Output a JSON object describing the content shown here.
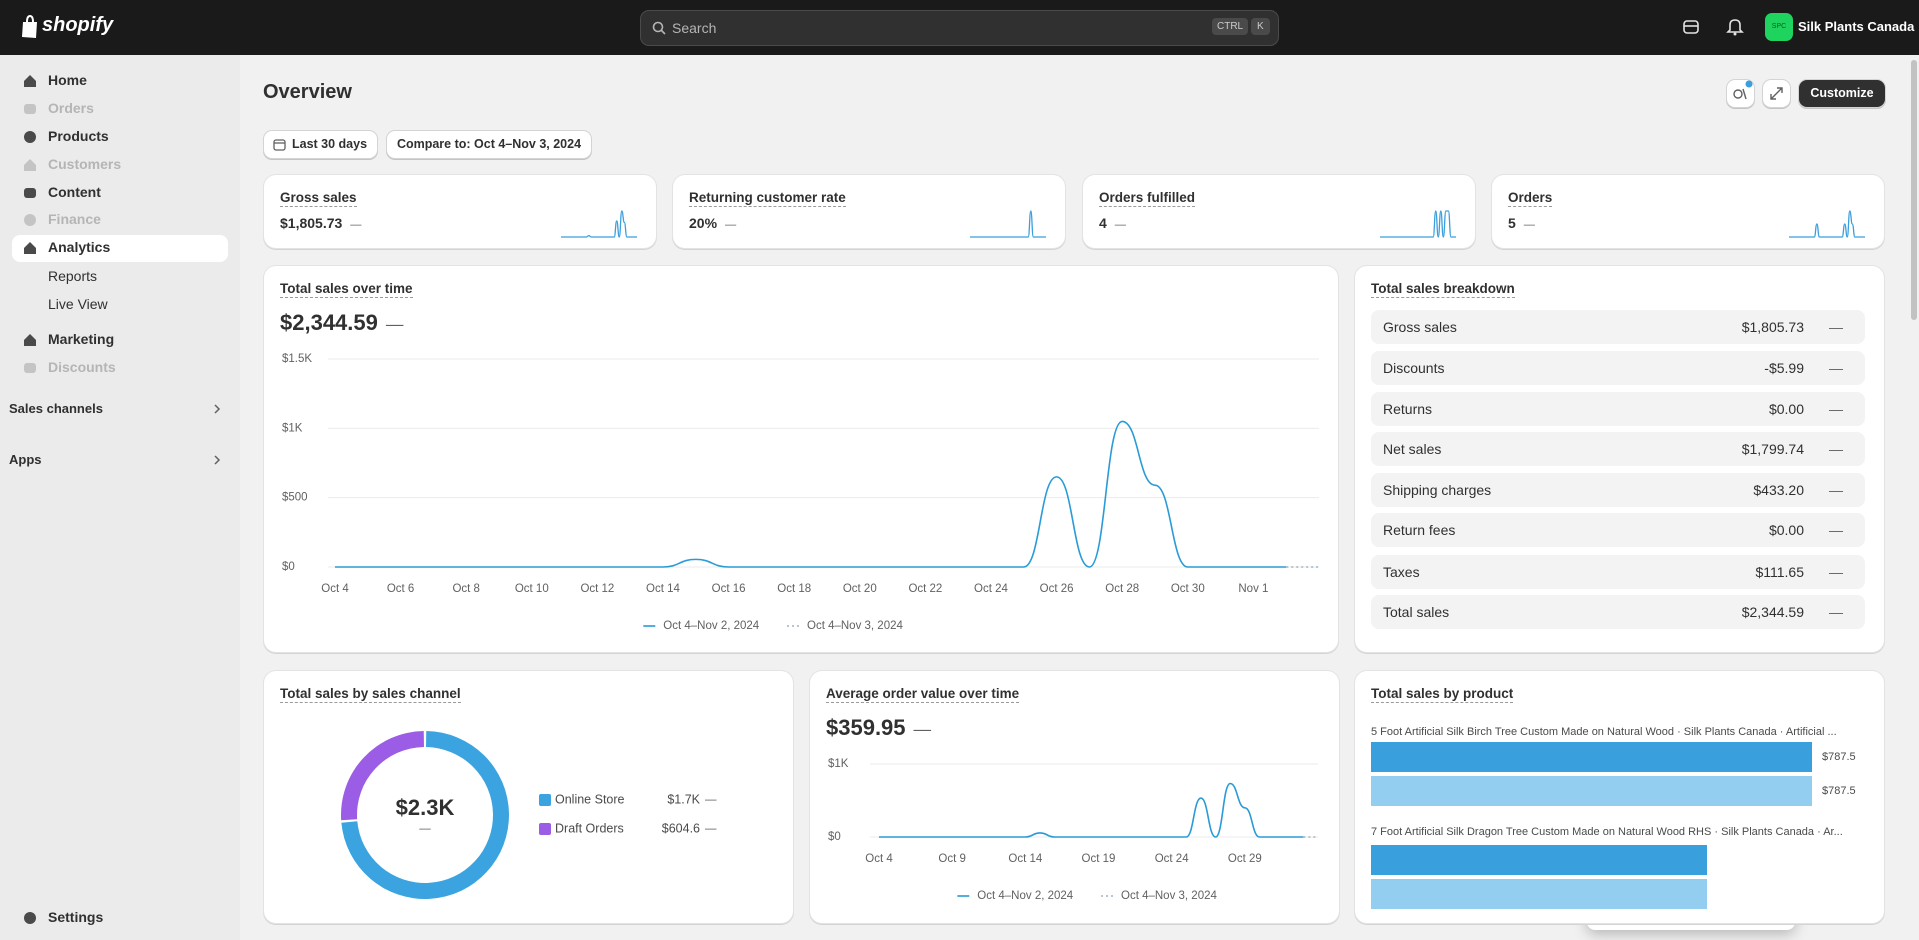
{
  "topbar": {
    "logo": "shopify",
    "search_placeholder": "Search",
    "shortcut_keys": [
      "CTRL",
      "K"
    ],
    "store_initials": "SPC",
    "store_name": "Silk Plants Canada"
  },
  "sidebar": {
    "nav": [
      {
        "label": "Home",
        "state": "normal"
      },
      {
        "label": "Orders",
        "state": "disabled"
      },
      {
        "label": "Products",
        "state": "normal"
      },
      {
        "label": "Customers",
        "state": "disabled"
      },
      {
        "label": "Content",
        "state": "normal"
      },
      {
        "label": "Finance",
        "state": "disabled"
      },
      {
        "label": "Analytics",
        "state": "active"
      },
      {
        "label": "Reports",
        "state": "sub"
      },
      {
        "label": "Live View",
        "state": "sub"
      },
      {
        "label": "Marketing",
        "state": "normal"
      },
      {
        "label": "Discounts",
        "state": "disabled"
      }
    ],
    "sections": [
      "Sales channels",
      "Apps"
    ],
    "settings": "Settings"
  },
  "header": {
    "title": "Overview",
    "date_range": "Last 30 days",
    "compare": "Compare to: Oct 4–Nov 3, 2024",
    "customize": "Customize"
  },
  "kpis": [
    {
      "label": "Gross sales",
      "value": "$1,805.73",
      "change": "—",
      "color": "#3a9fdc",
      "sparkline": [
        0,
        0,
        0,
        0,
        0,
        0,
        0,
        0,
        0,
        0,
        0,
        55,
        0,
        0,
        0,
        0,
        0,
        0,
        0,
        0,
        0,
        0,
        650,
        0,
        1050,
        590,
        0,
        0,
        0,
        0,
        0
      ]
    },
    {
      "label": "Returning customer rate",
      "value": "20%",
      "change": "—",
      "color": "#3a9fdc",
      "sparkline": [
        0,
        0,
        0,
        0,
        0,
        0,
        0,
        0,
        0,
        0,
        0,
        0,
        0,
        0,
        0,
        0,
        0,
        0,
        0,
        0,
        0,
        0,
        0,
        0,
        100,
        0,
        0,
        0,
        0,
        0,
        0
      ]
    },
    {
      "label": "Orders fulfilled",
      "value": "4",
      "change": "—",
      "color": "#3a9fdc",
      "sparkline": [
        0,
        0,
        0,
        0,
        0,
        0,
        0,
        0,
        0,
        0,
        0,
        0,
        0,
        0,
        0,
        0,
        0,
        0,
        0,
        0,
        0,
        0,
        1,
        0,
        1,
        0,
        1,
        1,
        0,
        0,
        0
      ]
    },
    {
      "label": "Orders",
      "value": "5",
      "change": "—",
      "color": "#3a9fdc",
      "sparkline": [
        0,
        0,
        0,
        0,
        0,
        0,
        0,
        0,
        0,
        0,
        0,
        1,
        0,
        0,
        0,
        0,
        0,
        0,
        0,
        0,
        0,
        0,
        1,
        0,
        2,
        1,
        0,
        0,
        0,
        0,
        0
      ]
    }
  ],
  "sales_over_time": {
    "type": "line",
    "title": "Total sales over time",
    "total": "$2,344.59",
    "change": "—",
    "categories": [
      "Oct 4",
      null,
      "Oct 6",
      null,
      "Oct 8",
      null,
      "Oct 10",
      null,
      "Oct 12",
      null,
      "Oct 14",
      null,
      "Oct 16",
      null,
      "Oct 18",
      null,
      "Oct 20",
      null,
      "Oct 22",
      null,
      "Oct 24",
      null,
      "Oct 26",
      null,
      "Oct 28",
      null,
      "Oct 30",
      null,
      "Nov 1",
      null,
      null
    ],
    "series": [
      {
        "name": "Oct 4–Nov 2, 2024",
        "color": "#2a9bd6",
        "dashed": false,
        "values": [
          0,
          0,
          0,
          0,
          0,
          0,
          0,
          0,
          0,
          0,
          0,
          55,
          0,
          0,
          0,
          0,
          0,
          0,
          0,
          0,
          0,
          0,
          650,
          0,
          1050,
          590,
          0,
          0,
          0,
          0,
          null
        ]
      },
      {
        "name": "Oct 4–Nov 3, 2024",
        "color": "#9fb4c2",
        "dashed": true,
        "values": [
          null,
          null,
          null,
          null,
          null,
          null,
          null,
          null,
          null,
          null,
          null,
          null,
          null,
          null,
          null,
          null,
          null,
          null,
          null,
          null,
          null,
          null,
          null,
          null,
          null,
          null,
          null,
          null,
          null,
          0,
          0
        ]
      }
    ],
    "ylim": [
      0,
      1500
    ],
    "yticks": [
      {
        "value": 0,
        "label": "$0"
      },
      {
        "value": 500,
        "label": "$500"
      },
      {
        "value": 1000,
        "label": "$1K"
      },
      {
        "value": 1500,
        "label": "$1.5K"
      }
    ],
    "grid": true
  },
  "breakdown": {
    "title": "Total sales breakdown",
    "rows": [
      {
        "label": "Gross sales",
        "value": "$1,805.73",
        "change": "—"
      },
      {
        "label": "Discounts",
        "value": "-$5.99",
        "change": "—"
      },
      {
        "label": "Returns",
        "value": "$0.00",
        "change": "—"
      },
      {
        "label": "Net sales",
        "value": "$1,799.74",
        "change": "—"
      },
      {
        "label": "Shipping charges",
        "value": "$433.20",
        "change": "—"
      },
      {
        "label": "Return fees",
        "value": "$0.00",
        "change": "—"
      },
      {
        "label": "Taxes",
        "value": "$111.65",
        "change": "—"
      },
      {
        "label": "Total sales",
        "value": "$2,344.59",
        "change": "—"
      }
    ]
  },
  "sales_by_channel": {
    "type": "donut",
    "title": "Total sales by sales channel",
    "center_label": "$2.3K",
    "center_change": "—",
    "categories": [
      "Online Store",
      "Draft Orders"
    ],
    "values": [
      1700,
      604.6
    ],
    "value_labels": [
      "$1.7K",
      "$604.6"
    ],
    "colors": [
      "#3ba4e0",
      "#9b5de5"
    ],
    "changes": [
      "—",
      "—"
    ]
  },
  "avg_order_value": {
    "type": "line",
    "title": "Average order value over time",
    "total": "$359.95",
    "change": "—",
    "categories": [
      "Oct 4",
      null,
      null,
      null,
      null,
      "Oct 9",
      null,
      null,
      null,
      null,
      "Oct 14",
      null,
      null,
      null,
      null,
      "Oct 19",
      null,
      null,
      null,
      null,
      "Oct 24",
      null,
      null,
      null,
      null,
      "Oct 29",
      null,
      null,
      null,
      null,
      null
    ],
    "series": [
      {
        "name": "Oct 4–Nov 2, 2024",
        "color": "#2a9bd6",
        "dashed": false,
        "values": [
          0,
          0,
          0,
          0,
          0,
          0,
          0,
          0,
          0,
          0,
          0,
          55,
          0,
          0,
          0,
          0,
          0,
          0,
          0,
          0,
          0,
          0,
          533,
          0,
          733,
          400,
          0,
          0,
          0,
          0,
          null
        ]
      },
      {
        "name": "Oct 4–Nov 3, 2024",
        "color": "#9fb4c2",
        "dashed": true,
        "values": [
          null,
          null,
          null,
          null,
          null,
          null,
          null,
          null,
          null,
          null,
          null,
          null,
          null,
          null,
          null,
          null,
          null,
          null,
          null,
          null,
          null,
          null,
          null,
          null,
          null,
          null,
          null,
          null,
          null,
          0,
          0
        ]
      }
    ],
    "ylim": [
      0,
      1000
    ],
    "yticks": [
      {
        "value": 0,
        "label": "$0"
      },
      {
        "value": 1000,
        "label": "$1K"
      }
    ],
    "grid": true
  },
  "sales_by_product": {
    "type": "hbar",
    "title": "Total sales by product",
    "categories": [
      "5 Foot Artificial Silk Birch Tree Custom Made on Natural Wood · Silk Plants Canada · Artificial ...",
      "7 Foot Artificial Silk Dragon Tree Custom Made on Natural Wood RHS · Silk Plants Canada · Ar..."
    ],
    "series": [
      {
        "color": "#3aa0dd",
        "values": [
          787.5,
          600
        ],
        "value_labels": [
          "$787.5",
          null
        ]
      },
      {
        "color": "#93cdf0",
        "values": [
          787.5,
          600
        ],
        "value_labels": [
          "$787.5",
          null
        ]
      }
    ],
    "xlim": [
      0,
      787.5
    ]
  }
}
